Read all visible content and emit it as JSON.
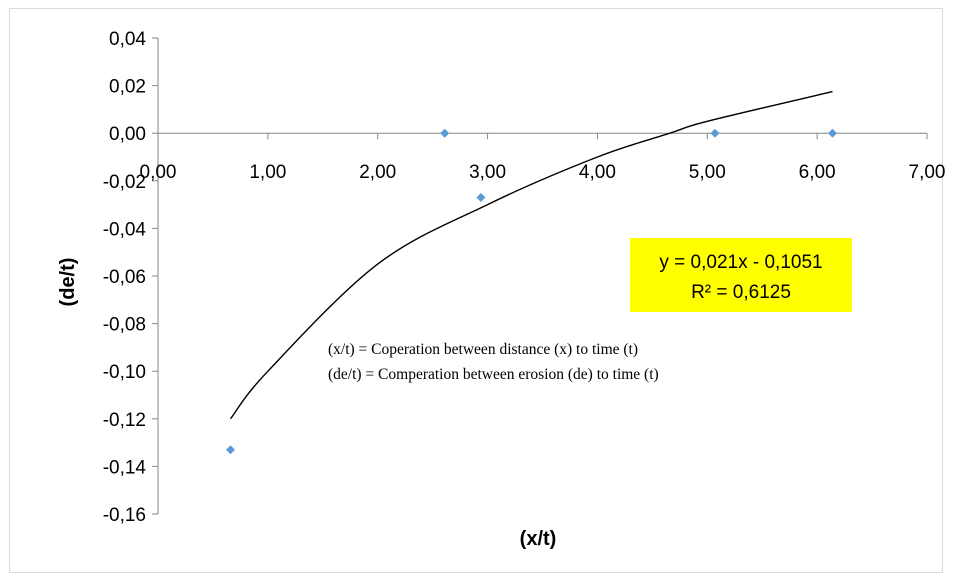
{
  "chart_data": {
    "type": "scatter",
    "title": "",
    "xlabel": "(x/t)",
    "ylabel": "(de/t)",
    "xlim": [
      0,
      7
    ],
    "ylim": [
      -0.16,
      0.04
    ],
    "x_ticks": [
      "0,00",
      "1,00",
      "2,00",
      "3,00",
      "4,00",
      "5,00",
      "6,00",
      "7,00"
    ],
    "y_ticks": [
      "0,04",
      "0,02",
      "0,00",
      "-0,02",
      "-0,04",
      "-0,06",
      "-0,08",
      "-0,10",
      "-0,12",
      "-0,14",
      "-0,16"
    ],
    "points": [
      {
        "x": 0.66,
        "y": -0.133
      },
      {
        "x": 2.61,
        "y": 0.0
      },
      {
        "x": 2.94,
        "y": -0.027
      },
      {
        "x": 5.07,
        "y": 0.0
      },
      {
        "x": 6.14,
        "y": 0.0
      }
    ],
    "marker_color": "#5b9bd5",
    "trendline": {
      "type": "logarithmic",
      "x_range": [
        0.66,
        6.14
      ],
      "approx_points": [
        {
          "x": 0.66,
          "y": -0.12
        },
        {
          "x": 1.0,
          "y": -0.1
        },
        {
          "x": 2.0,
          "y": -0.055
        },
        {
          "x": 3.0,
          "y": -0.03
        },
        {
          "x": 4.0,
          "y": -0.01
        },
        {
          "x": 4.66,
          "y": 0.0
        },
        {
          "x": 5.0,
          "y": 0.005
        },
        {
          "x": 6.14,
          "y": 0.0175
        }
      ],
      "color": "#000000"
    },
    "equation_box": {
      "line1": "y = 0,021x - 0,1051",
      "line2": "R² = 0,6125",
      "background": "#ffff00"
    },
    "annotations": [
      "(x/t) = Coperation between distance (x) to time (t)",
      "(de/t) = Comperation between erosion (de) to time (t)"
    ],
    "grid": false,
    "legend": "none"
  }
}
